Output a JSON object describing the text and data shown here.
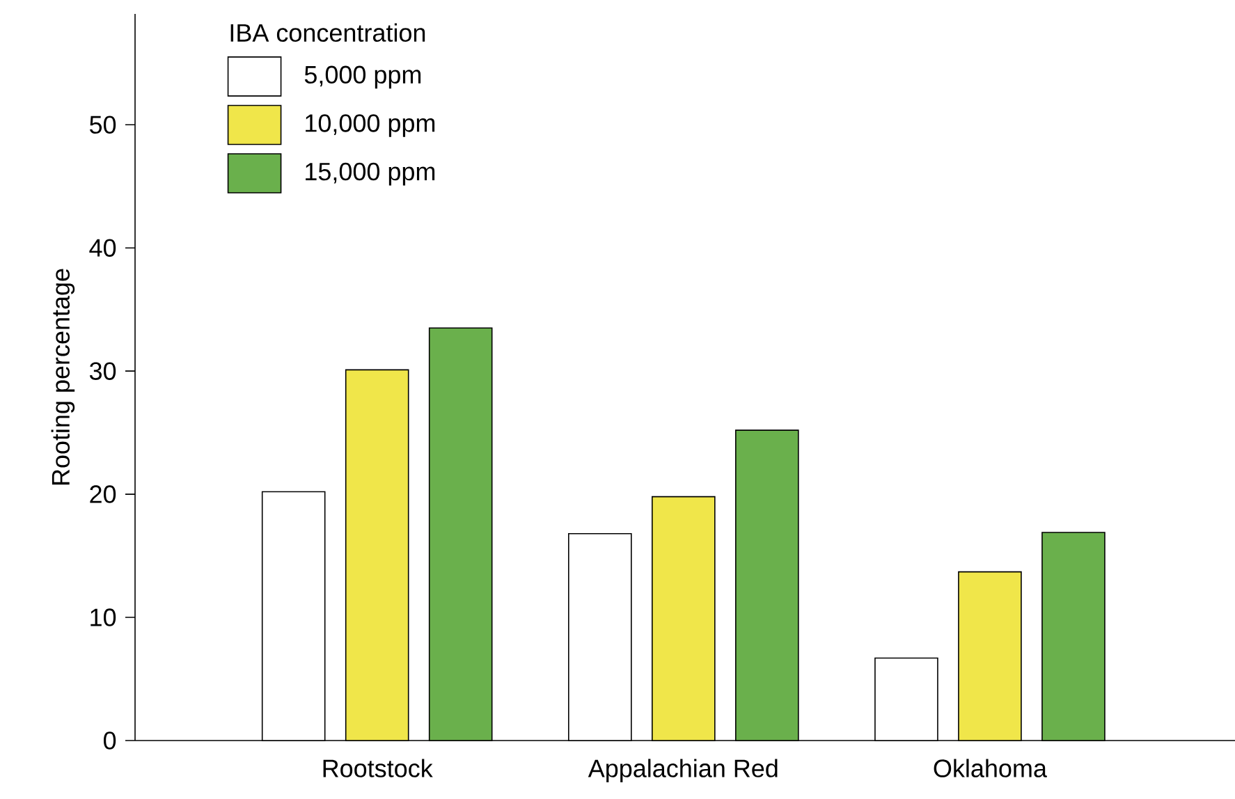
{
  "chart_data": {
    "type": "bar",
    "ylabel": "Rooting percentage",
    "legend_title": "IBA concentration",
    "legend": "top left",
    "categories": [
      "Rootstock",
      "Appalachian Red",
      "Oklahoma"
    ],
    "series": [
      {
        "name": "5,000 ppm",
        "color": "#ffffff",
        "values": [
          20.2,
          16.8,
          6.7
        ]
      },
      {
        "name": "10,000 ppm",
        "color": "#f0e64a",
        "values": [
          30.1,
          19.8,
          13.7
        ]
      },
      {
        "name": "15,000 ppm",
        "color": "#6ab04c",
        "values": [
          33.5,
          25.2,
          16.9
        ]
      }
    ],
    "ylim": [
      0,
      59
    ],
    "yticks": [
      0,
      10,
      20,
      30,
      40,
      50
    ]
  }
}
